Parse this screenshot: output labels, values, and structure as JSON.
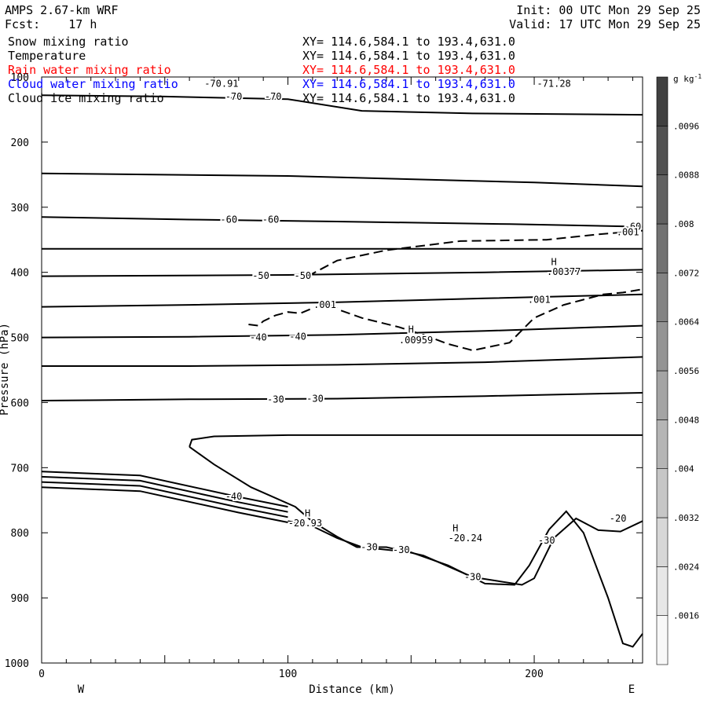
{
  "header": {
    "model": "AMPS 2.67-km WRF",
    "forecast": "Fcst:    17 h",
    "init": "Init: 00 UTC Mon 29 Sep 25",
    "valid": "Valid: 17 UTC Mon 29 Sep 25"
  },
  "fields": [
    {
      "name": "Snow mixing ratio",
      "xy": "XY= 114.6,584.1 to 193.4,631.0",
      "color": "#000000"
    },
    {
      "name": "Temperature",
      "xy": "XY= 114.6,584.1 to 193.4,631.0",
      "color": "#000000"
    },
    {
      "name": "Rain water mixing ratio",
      "xy": "XY= 114.6,584.1 to 193.4,631.0",
      "color": "#ff0000"
    },
    {
      "name": "Cloud water mixing ratio",
      "xy": "XY= 114.6,584.1 to 193.4,631.0",
      "color": "#0000ff"
    },
    {
      "name": "Cloud ice mixing ratio",
      "xy": "XY= 114.6,584.1 to 193.4,631.0",
      "color": "#000000"
    }
  ],
  "chart_data": {
    "type": "cross-section contour",
    "xlabel": "Distance (km)",
    "ylabel": "Pressure (hPa)",
    "x_ticks": [
      "0",
      "100",
      "200"
    ],
    "y_ticks": [
      "100",
      "200",
      "300",
      "400",
      "500",
      "600",
      "700",
      "800",
      "900",
      "1000"
    ],
    "xlim": [
      0,
      244
    ],
    "ylim": [
      1000,
      100
    ],
    "x_end_labels": {
      "left": "W",
      "right": "E"
    },
    "colorbar": {
      "unit": "g kg",
      "unit_exp": "-1",
      "levels": [
        ".0016",
        ".0024",
        ".0032",
        ".004",
        ".0048",
        ".0056",
        ".0064",
        ".0072",
        ".008",
        ".0088",
        ".0096"
      ]
    },
    "isotherms": [
      {
        "level": -70,
        "points": [
          [
            0,
            128
          ],
          [
            50,
            130
          ],
          [
            100,
            134
          ],
          [
            130,
            152
          ],
          [
            175,
            156
          ],
          [
            244,
            158
          ]
        ]
      },
      {
        "level": -70,
        "points": [
          [
            0,
            248
          ],
          [
            100,
            252
          ],
          [
            200,
            262
          ],
          [
            244,
            268
          ]
        ]
      },
      {
        "level": -60,
        "points": [
          [
            0,
            315
          ],
          [
            60,
            319
          ],
          [
            120,
            322
          ],
          [
            190,
            326
          ],
          [
            244,
            330
          ]
        ]
      },
      {
        "level": -60,
        "points": [
          [
            0,
            364
          ],
          [
            244,
            364
          ]
        ]
      },
      {
        "level": -50,
        "points": [
          [
            0,
            406
          ],
          [
            100,
            404
          ],
          [
            180,
            400
          ],
          [
            244,
            396
          ]
        ]
      },
      {
        "level": -50,
        "points": [
          [
            0,
            453
          ],
          [
            60,
            450
          ],
          [
            120,
            446
          ],
          [
            180,
            440
          ],
          [
            244,
            434
          ]
        ]
      },
      {
        "level": -40,
        "points": [
          [
            0,
            500
          ],
          [
            60,
            499
          ],
          [
            120,
            496
          ],
          [
            180,
            490
          ],
          [
            244,
            482
          ]
        ]
      },
      {
        "level": -40,
        "points": [
          [
            0,
            544
          ],
          [
            60,
            544
          ],
          [
            120,
            542
          ],
          [
            180,
            538
          ],
          [
            244,
            530
          ]
        ]
      },
      {
        "level": -30,
        "points": [
          [
            0,
            597
          ],
          [
            60,
            595
          ],
          [
            120,
            594
          ],
          [
            180,
            590
          ],
          [
            244,
            585
          ]
        ]
      },
      {
        "level": -30,
        "points": [
          [
            60,
            668
          ],
          [
            61,
            657
          ],
          [
            70,
            652
          ],
          [
            100,
            650
          ],
          [
            170,
            650
          ],
          [
            244,
            650
          ]
        ]
      },
      {
        "level": -30,
        "points": [
          [
            60,
            668
          ],
          [
            70,
            695
          ],
          [
            85,
            730
          ],
          [
            103,
            760
          ],
          [
            110,
            783
          ],
          [
            120,
            806
          ],
          [
            128,
            822
          ],
          [
            140,
            822
          ],
          [
            155,
            835
          ],
          [
            175,
            868
          ],
          [
            195,
            880
          ],
          [
            200,
            870
          ],
          [
            208,
            808
          ],
          [
            217,
            778
          ],
          [
            226,
            796
          ],
          [
            235,
            798
          ],
          [
            244,
            782
          ]
        ]
      }
    ],
    "snow_contour": {
      "level": ".001",
      "points": [
        [
          108,
          406
        ],
        [
          120,
          382
        ],
        [
          140,
          366
        ],
        [
          170,
          352
        ],
        [
          205,
          350
        ],
        [
          225,
          342
        ],
        [
          244,
          336
        ]
      ],
      "points2": [
        [
          84,
          480
        ],
        [
          88,
          482
        ],
        [
          90,
          475
        ],
        [
          95,
          466
        ],
        [
          100,
          461
        ],
        [
          105,
          463
        ],
        [
          110,
          455
        ],
        [
          112,
          452
        ],
        [
          118,
          451
        ],
        [
          121,
          458
        ],
        [
          130,
          470
        ],
        [
          145,
          484
        ],
        [
          155,
          496
        ],
        [
          165,
          510
        ],
        [
          175,
          520
        ],
        [
          190,
          508
        ],
        [
          200,
          470
        ],
        [
          212,
          450
        ],
        [
          218,
          444
        ],
        [
          228,
          434
        ],
        [
          236,
          431
        ],
        [
          244,
          426
        ]
      ]
    },
    "annotations": [
      {
        "text": "-70.91",
        "kind": "low_top_left"
      },
      {
        "text": "-71.28",
        "kind": "low_top_right"
      },
      {
        "text": ".00959",
        "kind": "high"
      },
      {
        "text": ".00377",
        "kind": "high"
      },
      {
        "text": "-20.93",
        "kind": "high"
      },
      {
        "text": "-20.24",
        "kind": "high"
      },
      {
        "text": "H",
        "kind": "marker"
      }
    ],
    "contour_labels": [
      "-70",
      "-60",
      "-50",
      "-40",
      "-30",
      "-20",
      ".001"
    ]
  }
}
